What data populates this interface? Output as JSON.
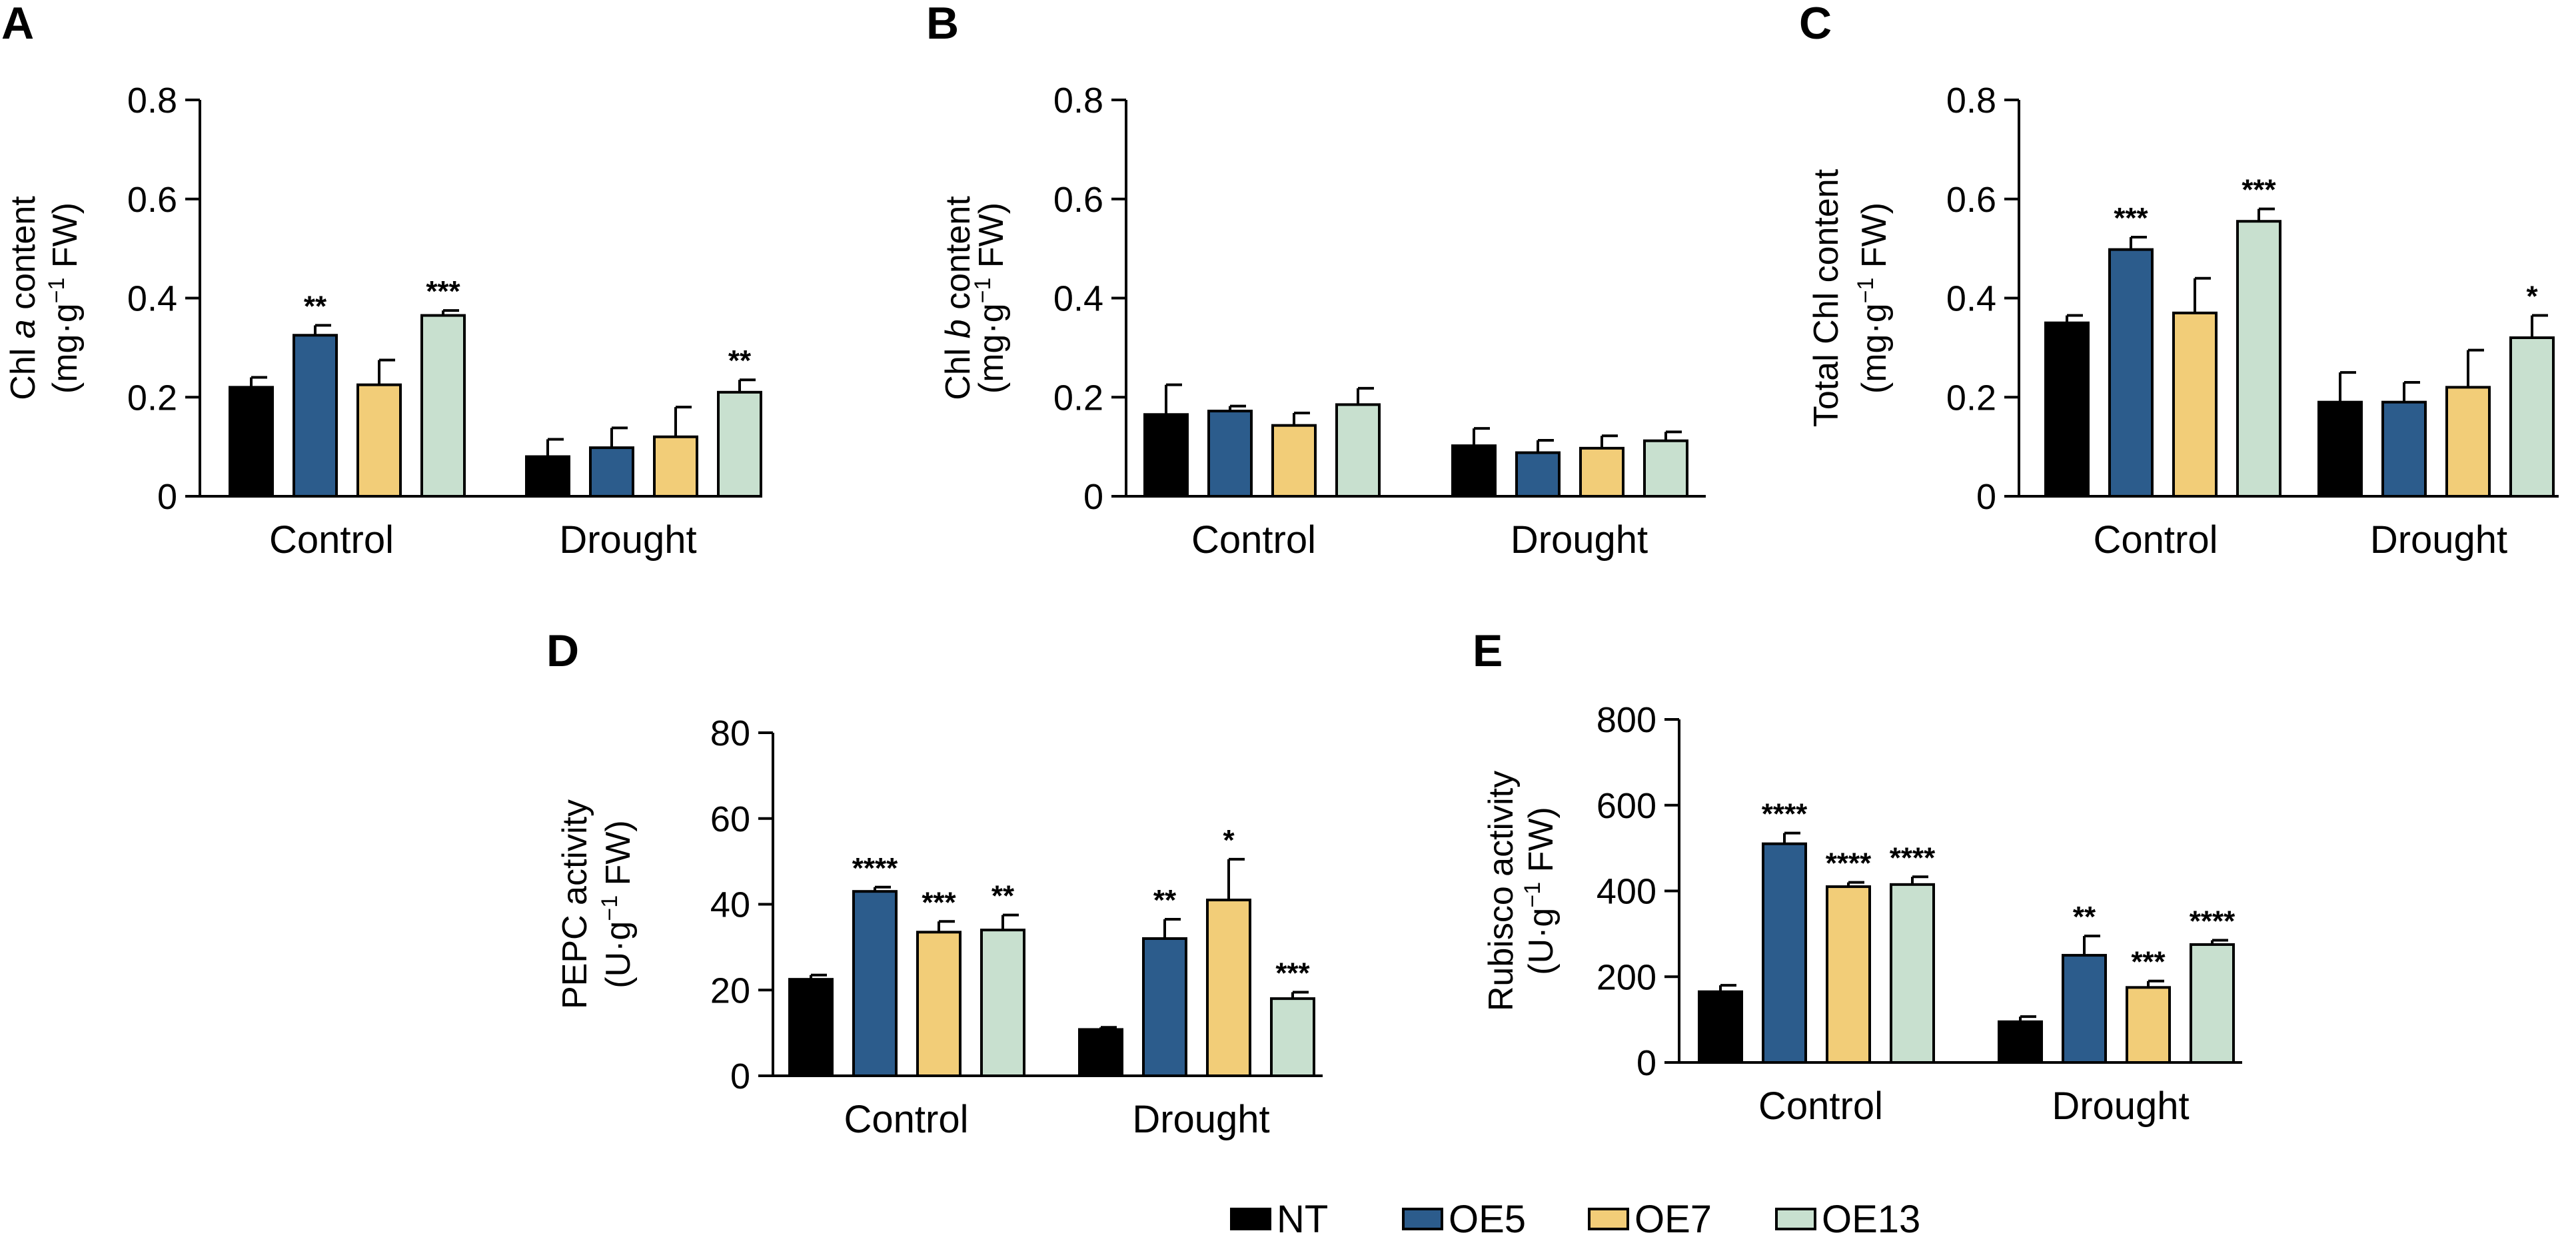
{
  "colors": {
    "NT": "#000000",
    "OE5": "#2c5c8c",
    "OE7": "#f2cd78",
    "OE13": "#c8e0cf"
  },
  "legend": [
    "NT",
    "OE5",
    "OE7",
    "OE13"
  ],
  "chart_data": [
    {
      "panel": "A",
      "type": "bar",
      "categories": [
        "Control",
        "Drought"
      ],
      "ylabel_lines": [
        [
          {
            "t": "Chl "
          },
          {
            "t": "a",
            "i": true
          },
          {
            "t": " content"
          }
        ],
        [
          {
            "t": "(mg·g"
          },
          {
            "t": "−1",
            "sup": true
          },
          {
            "t": " FW)"
          }
        ]
      ],
      "yticks": [
        "0",
        "0.2",
        "0.4",
        "0.6",
        "0.8"
      ],
      "ylim": [
        0,
        0.8
      ],
      "series": [
        {
          "name": "NT",
          "values": [
            0.22,
            0.08
          ],
          "errors": [
            0.02,
            0.035
          ],
          "sig": [
            "",
            ""
          ]
        },
        {
          "name": "OE5",
          "values": [
            0.325,
            0.098
          ],
          "errors": [
            0.02,
            0.04
          ],
          "sig": [
            "**",
            ""
          ]
        },
        {
          "name": "OE7",
          "values": [
            0.225,
            0.12
          ],
          "errors": [
            0.05,
            0.06
          ],
          "sig": [
            "",
            ""
          ]
        },
        {
          "name": "OE13",
          "values": [
            0.365,
            0.21
          ],
          "errors": [
            0.01,
            0.025
          ],
          "sig": [
            "***",
            "**"
          ]
        }
      ]
    },
    {
      "panel": "B",
      "type": "bar",
      "categories": [
        "Control",
        "Drought"
      ],
      "ylabel_lines": [
        [
          {
            "t": "Chl "
          },
          {
            "t": "b",
            "i": true
          },
          {
            "t": " content"
          }
        ],
        [
          {
            "t": "(mg·g"
          },
          {
            "t": "−1",
            "sup": true
          },
          {
            "t": " FW)"
          }
        ]
      ],
      "yticks": [
        "0",
        "0.2",
        "0.4",
        "0.6",
        "0.8"
      ],
      "ylim": [
        0,
        0.8
      ],
      "series": [
        {
          "name": "NT",
          "values": [
            0.165,
            0.102
          ],
          "errors": [
            0.06,
            0.035
          ],
          "sig": [
            "",
            ""
          ]
        },
        {
          "name": "OE5",
          "values": [
            0.172,
            0.088
          ],
          "errors": [
            0.01,
            0.025
          ],
          "sig": [
            "",
            ""
          ]
        },
        {
          "name": "OE7",
          "values": [
            0.143,
            0.097
          ],
          "errors": [
            0.025,
            0.025
          ],
          "sig": [
            "",
            ""
          ]
        },
        {
          "name": "OE13",
          "values": [
            0.185,
            0.112
          ],
          "errors": [
            0.033,
            0.018
          ],
          "sig": [
            "",
            ""
          ]
        }
      ]
    },
    {
      "panel": "C",
      "type": "bar",
      "categories": [
        "Control",
        "Drought"
      ],
      "ylabel_lines": [
        [
          {
            "t": "Total Chl content"
          }
        ],
        [
          {
            "t": "(mg·g"
          },
          {
            "t": "−1",
            "sup": true
          },
          {
            "t": " FW)"
          }
        ]
      ],
      "yticks": [
        "0",
        "0.2",
        "0.4",
        "0.6",
        "0.8"
      ],
      "ylim": [
        0,
        0.8
      ],
      "series": [
        {
          "name": "NT",
          "values": [
            0.35,
            0.19
          ],
          "errors": [
            0.015,
            0.06
          ],
          "sig": [
            "",
            ""
          ]
        },
        {
          "name": "OE5",
          "values": [
            0.498,
            0.19
          ],
          "errors": [
            0.025,
            0.04
          ],
          "sig": [
            "***",
            ""
          ]
        },
        {
          "name": "OE7",
          "values": [
            0.37,
            0.22
          ],
          "errors": [
            0.07,
            0.075
          ],
          "sig": [
            "",
            ""
          ]
        },
        {
          "name": "OE13",
          "values": [
            0.555,
            0.32
          ],
          "errors": [
            0.025,
            0.045
          ],
          "sig": [
            "***",
            "*"
          ]
        }
      ]
    },
    {
      "panel": "D",
      "type": "bar",
      "categories": [
        "Control",
        "Drought"
      ],
      "ylabel_lines": [
        [
          {
            "t": "PEPC activity"
          }
        ],
        [
          {
            "t": "(U·g"
          },
          {
            "t": "−1",
            "sup": true
          },
          {
            "t": " FW)"
          }
        ]
      ],
      "yticks": [
        "0",
        "20",
        "40",
        "60",
        "80"
      ],
      "ylim": [
        0,
        80
      ],
      "series": [
        {
          "name": "NT",
          "values": [
            22.5,
            10.8
          ],
          "errors": [
            1.0,
            0.5
          ],
          "sig": [
            "",
            ""
          ]
        },
        {
          "name": "OE5",
          "values": [
            43.0,
            32.0
          ],
          "errors": [
            1.0,
            4.5
          ],
          "sig": [
            "****",
            "**"
          ]
        },
        {
          "name": "OE7",
          "values": [
            33.5,
            41.0
          ],
          "errors": [
            2.5,
            9.5
          ],
          "sig": [
            "***",
            "*"
          ]
        },
        {
          "name": "OE13",
          "values": [
            34.0,
            18.0
          ],
          "errors": [
            3.5,
            1.5
          ],
          "sig": [
            "**",
            "***"
          ]
        }
      ]
    },
    {
      "panel": "E",
      "type": "bar",
      "categories": [
        "Control",
        "Drought"
      ],
      "ylabel_lines": [
        [
          {
            "t": "Rubisco activity"
          }
        ],
        [
          {
            "t": "(U·g"
          },
          {
            "t": "−1",
            "sup": true
          },
          {
            "t": " FW)"
          }
        ]
      ],
      "yticks": [
        "0",
        "200",
        "400",
        "600",
        "800"
      ],
      "ylim": [
        0,
        800
      ],
      "series": [
        {
          "name": "NT",
          "values": [
            165,
            95
          ],
          "errors": [
            15,
            12
          ],
          "sig": [
            "",
            ""
          ]
        },
        {
          "name": "OE5",
          "values": [
            510,
            250
          ],
          "errors": [
            25,
            45
          ],
          "sig": [
            "****",
            "**"
          ]
        },
        {
          "name": "OE7",
          "values": [
            410,
            175
          ],
          "errors": [
            10,
            15
          ],
          "sig": [
            "****",
            "***"
          ]
        },
        {
          "name": "OE13",
          "values": [
            415,
            275
          ],
          "errors": [
            18,
            10
          ],
          "sig": [
            "****",
            "****"
          ]
        }
      ]
    }
  ]
}
